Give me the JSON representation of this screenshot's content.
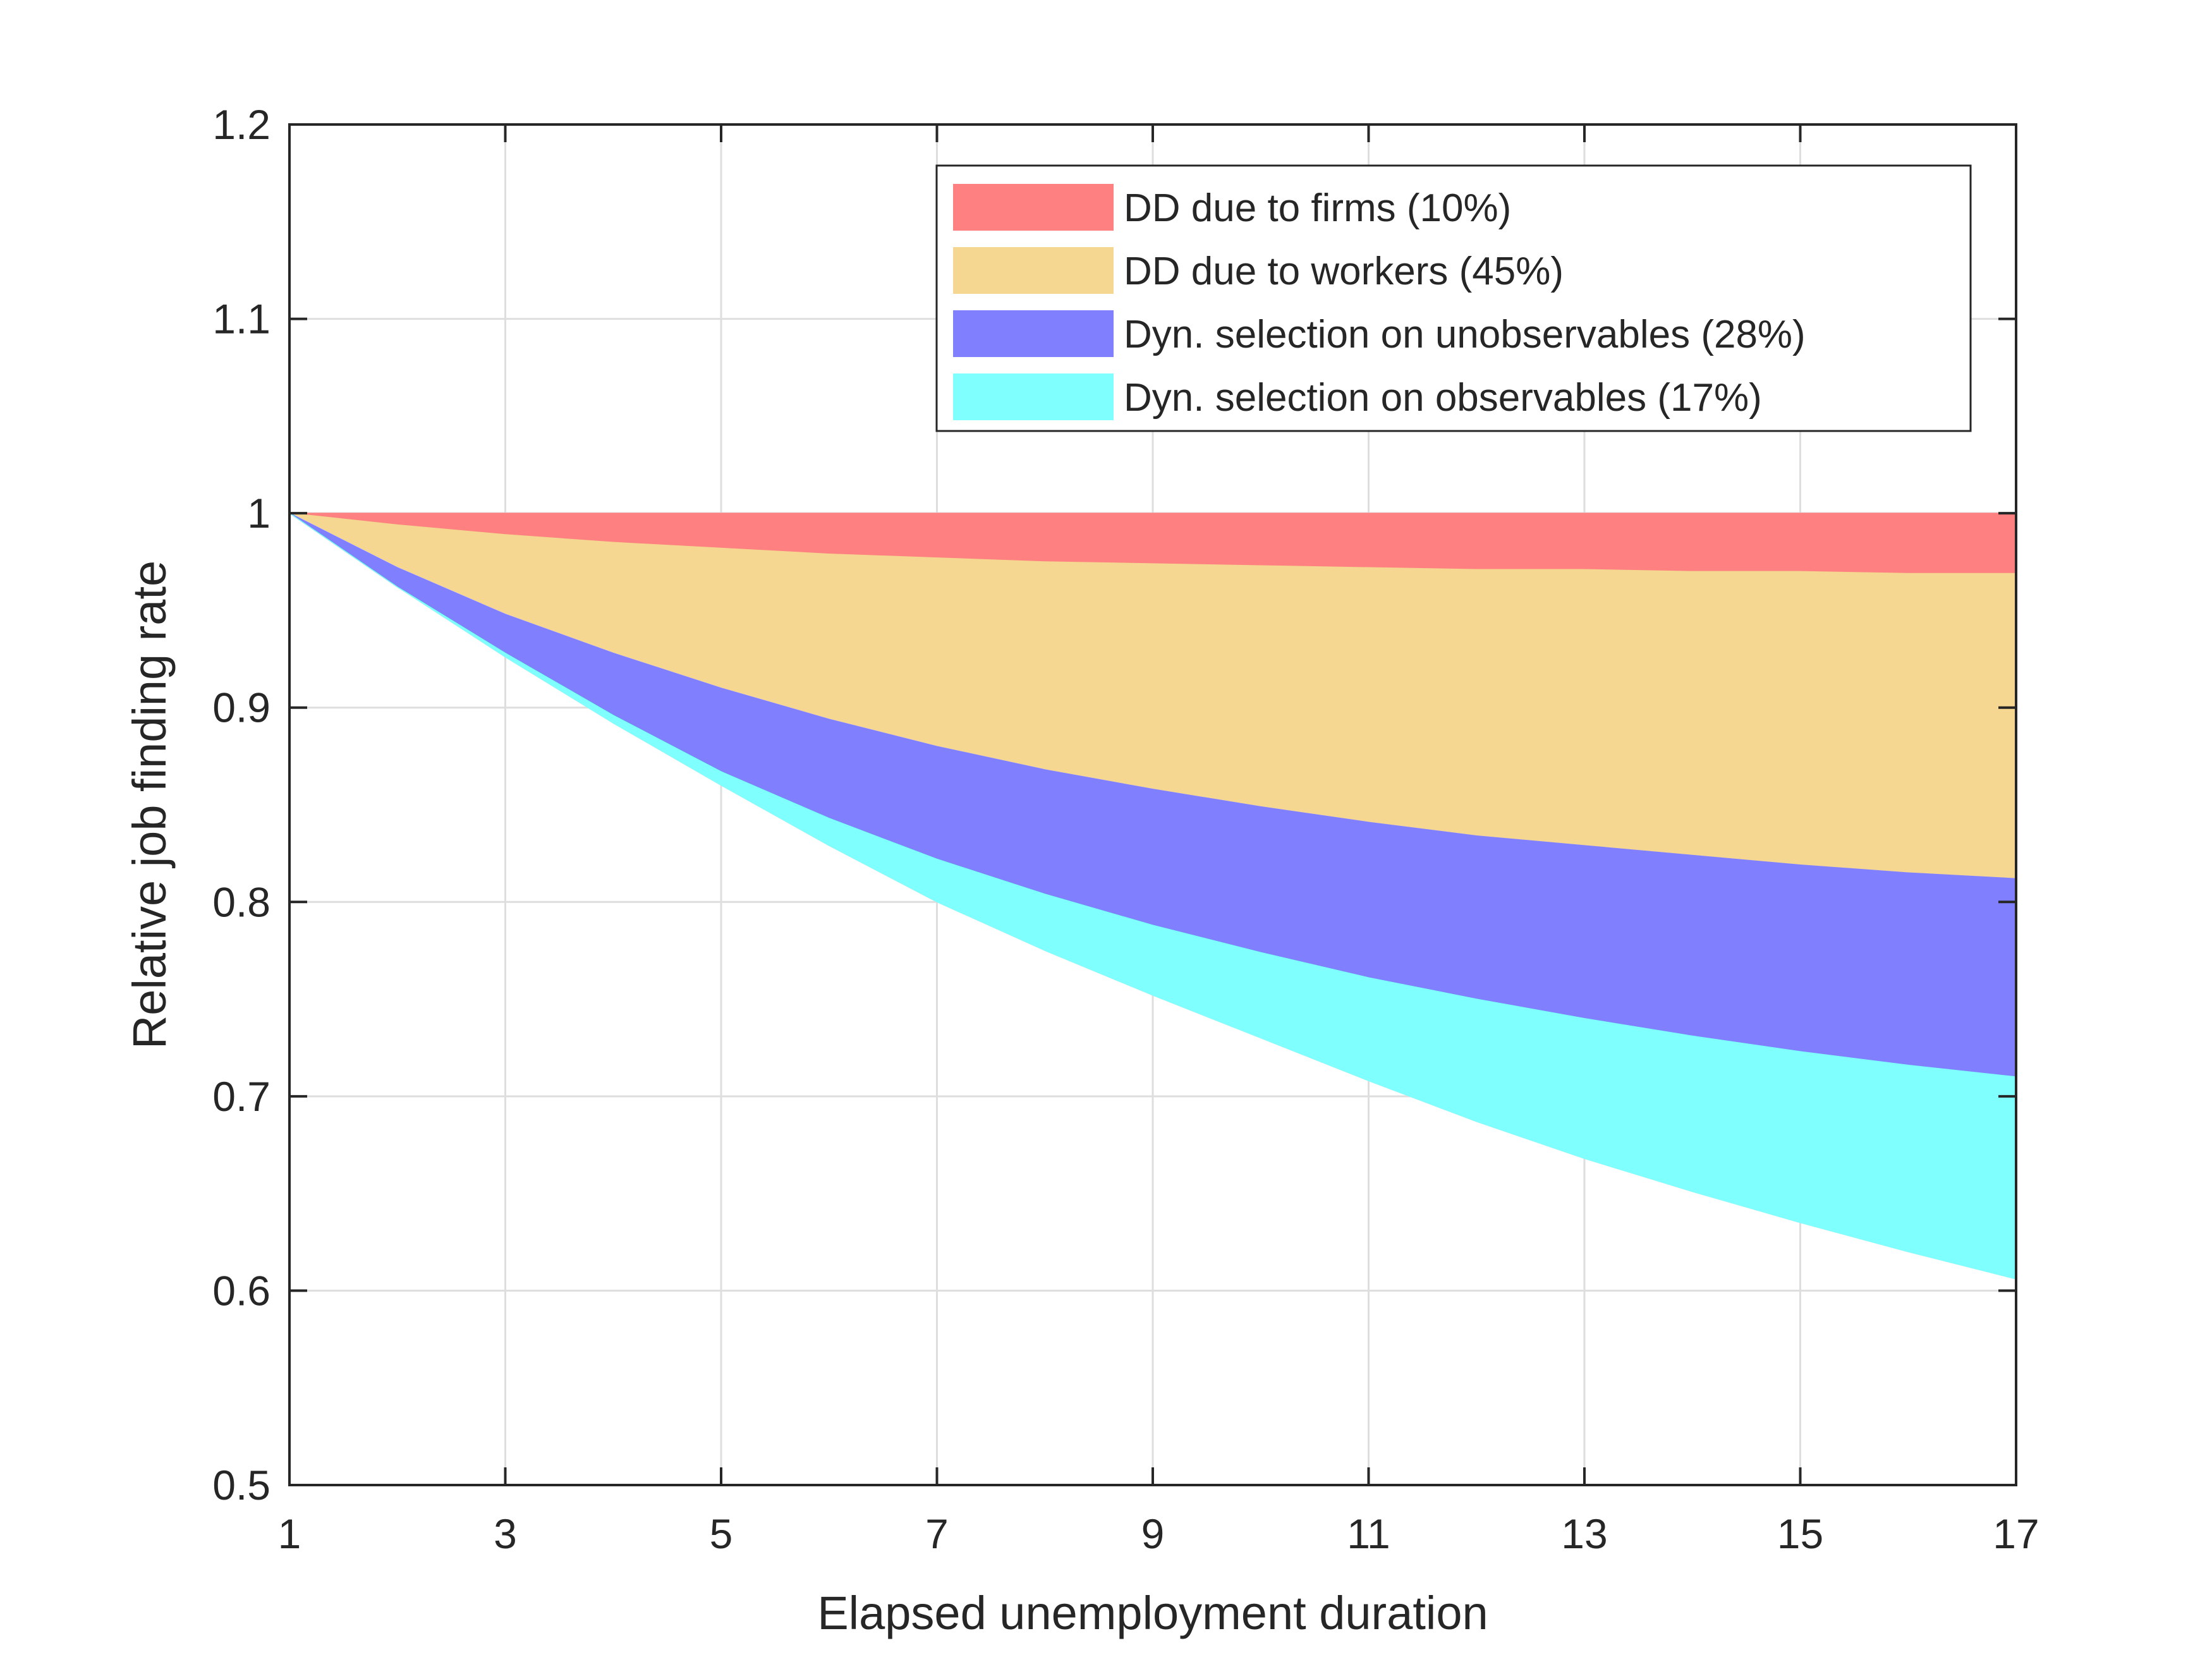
{
  "chart_data": {
    "type": "area",
    "title": "",
    "xlabel": "Elapsed unemployment duration",
    "ylabel": "Relative job finding rate",
    "xlim": [
      1,
      17
    ],
    "ylim": [
      0.5,
      1.2
    ],
    "xticks": [
      1,
      3,
      5,
      7,
      9,
      11,
      13,
      15,
      17
    ],
    "xtick_labels": [
      "1",
      "3",
      "5",
      "7",
      "9",
      "11",
      "13",
      "15",
      "17"
    ],
    "yticks": [
      0.5,
      0.6,
      0.7,
      0.8,
      0.9,
      1.0,
      1.1,
      1.2
    ],
    "ytick_labels": [
      "0.5",
      "0.6",
      "0.7",
      "0.8",
      "0.9",
      "1",
      "1.1",
      "1.2"
    ],
    "grid": true,
    "legend_position": "top-right",
    "x": [
      1,
      2,
      3,
      4,
      5,
      6,
      7,
      8,
      9,
      10,
      11,
      12,
      13,
      14,
      15,
      16,
      17
    ],
    "boundaries": {
      "top": [
        1.0,
        1.0,
        1.0,
        1.0,
        1.0,
        1.0,
        1.0,
        1.0,
        1.0,
        1.0,
        1.0,
        1.0,
        1.0,
        1.0,
        1.0,
        1.0,
        1.0
      ],
      "firms_lower": [
        1.0,
        0.994,
        0.989,
        0.985,
        0.982,
        0.979,
        0.977,
        0.975,
        0.974,
        0.973,
        0.972,
        0.971,
        0.971,
        0.97,
        0.97,
        0.969,
        0.969
      ],
      "workers_lower": [
        1.0,
        0.972,
        0.948,
        0.928,
        0.91,
        0.894,
        0.88,
        0.868,
        0.858,
        0.849,
        0.841,
        0.834,
        0.829,
        0.824,
        0.819,
        0.815,
        0.812
      ],
      "unobs_lower": [
        1.0,
        0.962,
        0.928,
        0.896,
        0.867,
        0.843,
        0.822,
        0.804,
        0.788,
        0.774,
        0.761,
        0.75,
        0.74,
        0.731,
        0.723,
        0.716,
        0.71
      ],
      "obs_lower": [
        1.0,
        0.962,
        0.926,
        0.892,
        0.86,
        0.829,
        0.8,
        0.775,
        0.752,
        0.73,
        0.708,
        0.687,
        0.668,
        0.651,
        0.635,
        0.62,
        0.606
      ]
    },
    "series": [
      {
        "name": "DD due to firms (10%)",
        "color": "#ff8080",
        "upper": "top",
        "lower": "firms_lower"
      },
      {
        "name": "DD due to workers (45%)",
        "color": "#f5d791",
        "upper": "firms_lower",
        "lower": "workers_lower"
      },
      {
        "name": "Dyn. selection on unobservables (28%)",
        "color": "#8080ff",
        "upper": "workers_lower",
        "lower": "unobs_lower"
      },
      {
        "name": "Dyn. selection on observables (17%)",
        "color": "#80ffff",
        "upper": "unobs_lower",
        "lower": "obs_lower"
      }
    ]
  }
}
